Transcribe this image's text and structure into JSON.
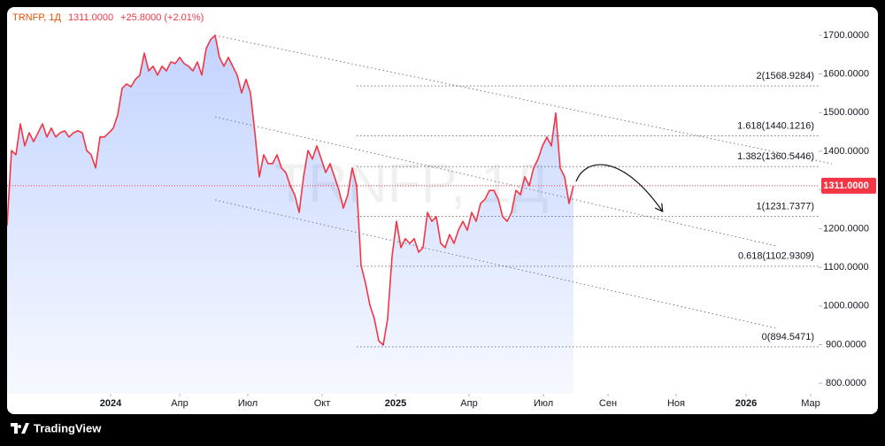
{
  "chart_data": {
    "type": "line",
    "symbol": "TRNFP, 1Д",
    "legend_change": "+25.8000 (+2.01%)",
    "last_price": {
      "value": 1311,
      "label": "1311.0000"
    },
    "color": "#f23645",
    "area": true,
    "values": [
      1208,
      1402,
      1391,
      1471,
      1414,
      1448,
      1425,
      1448,
      1471,
      1437,
      1460,
      1437,
      1448,
      1453,
      1437,
      1448,
      1453,
      1448,
      1402,
      1391,
      1357,
      1437,
      1437,
      1448,
      1460,
      1494,
      1563,
      1574,
      1567,
      1586,
      1597,
      1654,
      1608,
      1620,
      1597,
      1620,
      1608,
      1631,
      1627,
      1643,
      1627,
      1620,
      1608,
      1631,
      1597,
      1666,
      1689,
      1700,
      1643,
      1620,
      1643,
      1620,
      1597,
      1551,
      1586,
      1551,
      1448,
      1334,
      1391,
      1368,
      1368,
      1391,
      1357,
      1345,
      1311,
      1288,
      1242,
      1334,
      1402,
      1380,
      1414,
      1380,
      1345,
      1368,
      1334,
      1299,
      1253,
      1288,
      1357,
      1311,
      1105,
      1059,
      1002,
      967,
      910,
      899,
      967,
      1128,
      1219,
      1151,
      1174,
      1162,
      1174,
      1139,
      1151,
      1242,
      1219,
      1231,
      1162,
      1151,
      1185,
      1162,
      1196,
      1219,
      1196,
      1242,
      1219,
      1265,
      1276,
      1299,
      1299,
      1276,
      1231,
      1219,
      1242,
      1299,
      1288,
      1334,
      1311,
      1357,
      1380,
      1414,
      1437,
      1414,
      1499,
      1357,
      1334,
      1265,
      1311
    ],
    "xlim": [
      0,
      183.4
    ],
    "xticks": [
      {
        "value": 23.4,
        "label": "2024"
      },
      {
        "value": 39,
        "label": "Апр"
      },
      {
        "value": 54.4,
        "label": "Июл"
      },
      {
        "value": 71.2,
        "label": "Окт"
      },
      {
        "value": 87.8,
        "label": "2025"
      },
      {
        "value": 104.4,
        "label": "Апр"
      },
      {
        "value": 121.2,
        "label": "Июл"
      },
      {
        "value": 135.8,
        "label": "Сен"
      },
      {
        "value": 151.2,
        "label": "Ноя"
      },
      {
        "value": 167,
        "label": "2026"
      },
      {
        "value": 181.6,
        "label": "Мар"
      }
    ],
    "ylim": [
      773,
      1773
    ],
    "yticks": [
      {
        "value": 800,
        "label": "800.0000"
      },
      {
        "value": 900,
        "label": "900.0000"
      },
      {
        "value": 1000,
        "label": "1000.0000"
      },
      {
        "value": 1100,
        "label": "1100.0000"
      },
      {
        "value": 1200,
        "label": "1200.0000"
      },
      {
        "value": 1300,
        "label": "1300.0000"
      },
      {
        "value": 1400,
        "label": "1400.0000"
      },
      {
        "value": 1500,
        "label": "1500.0000"
      },
      {
        "value": 1600,
        "label": "1600.0000"
      },
      {
        "value": 1700,
        "label": "1700.0000"
      }
    ],
    "fib_levels": {
      "values": [
        1568.9284,
        1440.1216,
        1360.5446,
        1231.7377,
        1102.9309,
        894.5471
      ],
      "value_labels": [
        "2(1568.9284)",
        "1.618(1440.1216)",
        "1.382(1360.5446)",
        "1(1231.7377)",
        "0.618(1102.9309)",
        "0(894.5471)"
      ]
    },
    "footer": "TradingView"
  }
}
